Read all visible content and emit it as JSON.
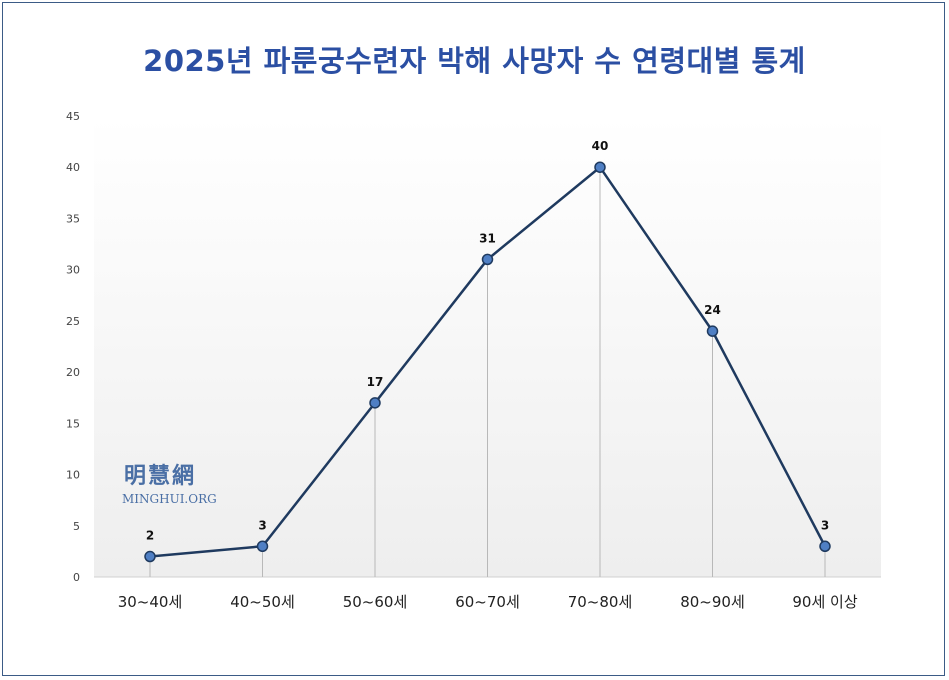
{
  "chart_data": {
    "type": "line",
    "title": "2025년 파룬궁수련자 박해 사망자 수 연령대별 통계",
    "categories": [
      "30~40세",
      "40~50세",
      "50~60세",
      "60~70세",
      "70~80세",
      "80~90세",
      "90세 이상"
    ],
    "values": [
      2,
      3,
      17,
      31,
      40,
      24,
      3
    ],
    "ylim": [
      0,
      45
    ],
    "yticks": [
      0,
      5,
      10,
      15,
      20,
      25,
      30,
      35,
      40,
      45
    ],
    "xlabel": "",
    "ylabel": "",
    "data_labels": true,
    "drop_lines": true,
    "grid": false,
    "legend": "none",
    "colors": {
      "line": "#1f3a5f",
      "marker": "#4f7fc4",
      "title": "#2b4fa3",
      "drop_line": "#b8b8b8"
    }
  },
  "watermark": {
    "chinese": "明慧網",
    "english": "MINGHUI.ORG"
  }
}
